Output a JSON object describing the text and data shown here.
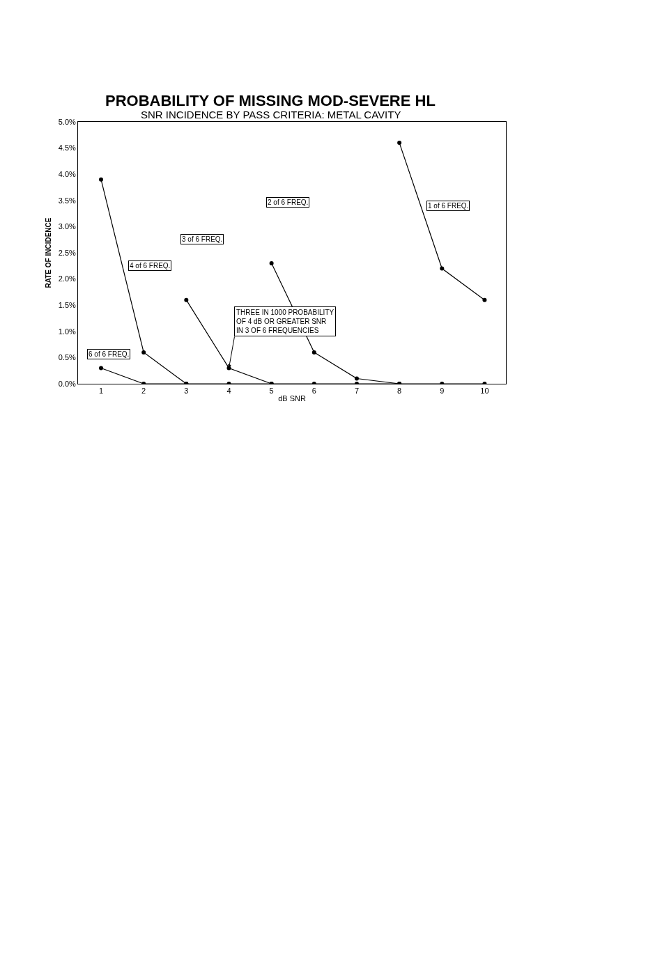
{
  "chart_data": {
    "type": "line",
    "title": "PROBABILITY OF MISSING MOD-SEVERE HL",
    "subtitle": "SNR INCIDENCE BY PASS CRITERIA: METAL CAVITY",
    "xlabel": "dB SNR",
    "ylabel": "RATE OF INCIDENCE",
    "x": [
      1,
      2,
      3,
      4,
      5,
      6,
      7,
      8,
      9,
      10
    ],
    "xlim": [
      0.46,
      10.5
    ],
    "xticks": [
      1,
      2,
      3,
      4,
      5,
      6,
      7,
      8,
      9,
      10
    ],
    "ylim": [
      0,
      5
    ],
    "yticks": [
      {
        "value": 0,
        "label": "0.0%"
      },
      {
        "value": 0.5,
        "label": "0.5%"
      },
      {
        "value": 1,
        "label": "1.0%"
      },
      {
        "value": 1.5,
        "label": "1.5%"
      },
      {
        "value": 2,
        "label": "2.0%"
      },
      {
        "value": 2.5,
        "label": "2.5%"
      },
      {
        "value": 3,
        "label": "3.0%"
      },
      {
        "value": 3.5,
        "label": "3.5%"
      },
      {
        "value": 4,
        "label": "4.0%"
      },
      {
        "value": 4.5,
        "label": "4.5%"
      },
      {
        "value": 5,
        "label": "5.0%"
      }
    ],
    "series": [
      {
        "name": "6 of 6 FREQ.",
        "color": "#000000",
        "values": [
          0.3,
          0,
          0,
          0,
          0,
          0,
          0,
          0,
          0,
          0
        ]
      },
      {
        "name": "4 of 6 FREQ.",
        "color": "#000000",
        "values": [
          3.9,
          0.6,
          0,
          null,
          null,
          null,
          null,
          null,
          null,
          null
        ]
      },
      {
        "name": "3 of 6 FREQ.",
        "color": "#000000",
        "values": [
          null,
          null,
          1.6,
          0.3,
          0,
          null,
          null,
          null,
          null,
          null
        ]
      },
      {
        "name": "2 of 6 FREQ.",
        "color": "#000000",
        "values": [
          null,
          null,
          null,
          null,
          2.3,
          0.6,
          0.1,
          0,
          null,
          null
        ]
      },
      {
        "name": "1 of 6 FREQ.",
        "color": "#000000",
        "values": [
          null,
          null,
          null,
          null,
          null,
          null,
          null,
          4.6,
          2.2,
          1.6
        ]
      }
    ],
    "annotations": [
      {
        "text": "THREE IN 1000 PROBABILITY\nOF 4 dB OR GREATER SNR\nIN 3 OF 6 FREQUENCIES",
        "x": 4,
        "y": 0.3
      }
    ],
    "marker": "circle",
    "line_style": "solid",
    "grid": false,
    "legend": false
  }
}
